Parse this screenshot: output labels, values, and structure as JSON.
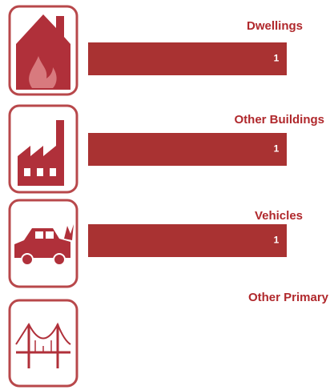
{
  "chart_data": {
    "type": "bar",
    "orientation": "horizontal",
    "categories": [
      "Dwellings",
      "Other Buildings",
      "Vehicles",
      "Other Primary"
    ],
    "values": [
      1,
      1,
      1,
      null
    ],
    "color": "#a93232",
    "xlim": [
      0,
      1
    ]
  }
}
